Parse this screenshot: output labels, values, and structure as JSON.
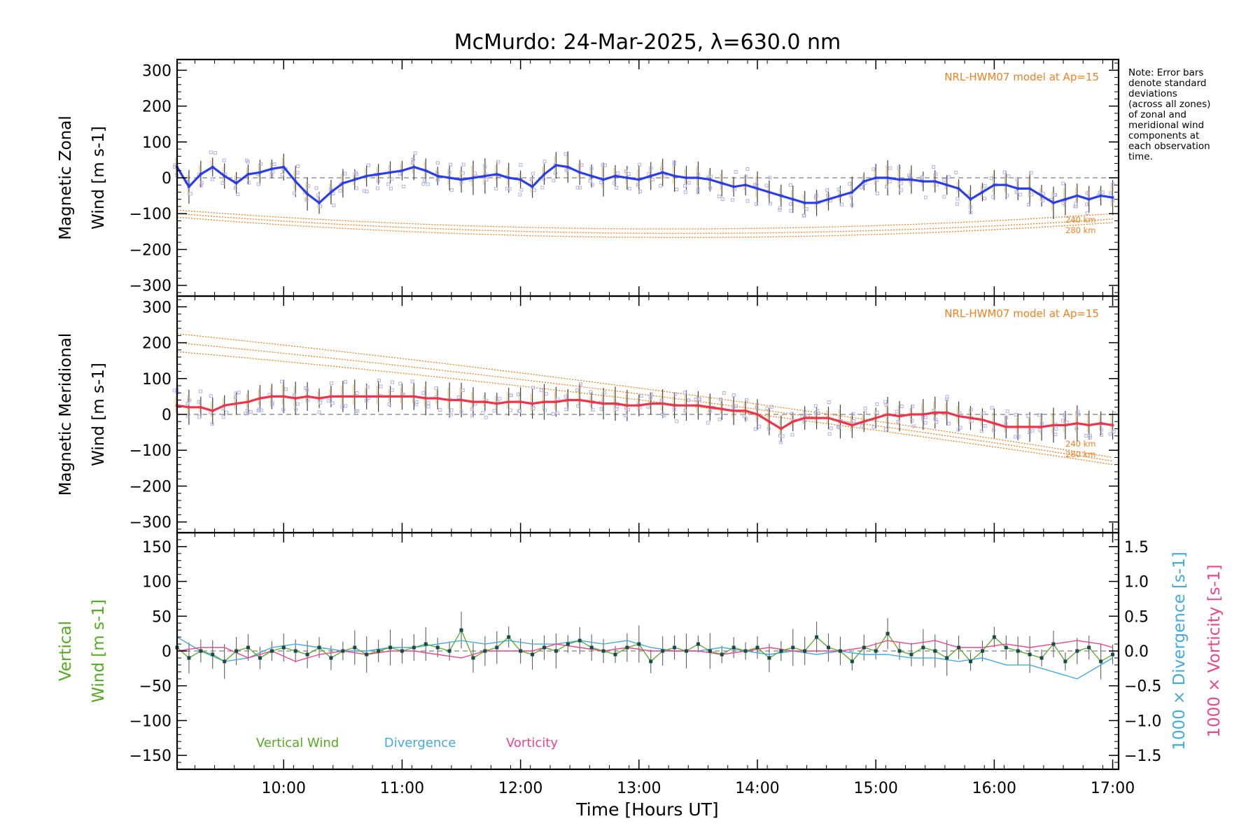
{
  "chart_data": {
    "type": "line",
    "title": "McMurdo: 24-Mar-2025, λ=630.0 nm",
    "note": [
      "Note: Error bars",
      "denote standard",
      "deviations",
      "(across all zones)",
      "of zonal and",
      "meridional wind",
      "components at",
      "each observation",
      "time."
    ],
    "x_axis": {
      "label": "Time [Hours UT]",
      "range": [
        9.1,
        17.05
      ],
      "ticks": [
        10,
        11,
        12,
        13,
        14,
        15,
        16,
        17
      ],
      "tick_labels": [
        "10:00",
        "11:00",
        "12:00",
        "13:00",
        "14:00",
        "15:00",
        "16:00",
        "17:00"
      ]
    },
    "panels": [
      {
        "id": "zonal",
        "ylabel_lines": [
          "Magnetic Zonal",
          "Wind [m s-1]"
        ],
        "ylim": [
          -330,
          330
        ],
        "yticks": [
          300,
          200,
          100,
          0,
          -100,
          -200,
          -300
        ],
        "ytick_labels": [
          "300",
          "200",
          "100",
          "0",
          "−100",
          "−200",
          "−300"
        ],
        "model_label": "NRL-HWM07 model at Ap=15",
        "model_alt_labels": [
          "240 km",
          "280 km"
        ],
        "series": [
          {
            "name": "Zonal wind",
            "color": "#2a3cf0",
            "x": [
              9.1,
              9.2,
              9.3,
              9.4,
              9.5,
              9.6,
              9.7,
              9.8,
              9.9,
              10.0,
              10.1,
              10.2,
              10.3,
              10.4,
              10.5,
              10.6,
              10.7,
              10.8,
              10.9,
              11.0,
              11.1,
              11.2,
              11.3,
              11.4,
              11.5,
              11.6,
              11.7,
              11.8,
              11.9,
              12.0,
              12.1,
              12.2,
              12.3,
              12.4,
              12.5,
              12.6,
              12.7,
              12.8,
              12.9,
              13.0,
              13.1,
              13.2,
              13.3,
              13.4,
              13.5,
              13.6,
              13.7,
              13.8,
              13.9,
              14.0,
              14.1,
              14.2,
              14.3,
              14.4,
              14.5,
              14.6,
              14.7,
              14.8,
              14.9,
              15.0,
              15.1,
              15.2,
              15.3,
              15.4,
              15.5,
              15.6,
              15.7,
              15.8,
              15.9,
              16.0,
              16.1,
              16.2,
              16.3,
              16.4,
              16.5,
              16.6,
              16.7,
              16.8,
              16.9,
              17.0
            ],
            "y": [
              30,
              -25,
              10,
              30,
              5,
              -15,
              10,
              15,
              25,
              30,
              -10,
              -45,
              -70,
              -40,
              -15,
              -5,
              5,
              10,
              15,
              20,
              30,
              20,
              5,
              0,
              -5,
              0,
              5,
              10,
              0,
              -5,
              -25,
              10,
              35,
              30,
              15,
              5,
              -5,
              5,
              0,
              -5,
              5,
              15,
              5,
              0,
              0,
              -5,
              -15,
              -25,
              -20,
              -30,
              -40,
              -50,
              -60,
              -70,
              -70,
              -60,
              -50,
              -40,
              -10,
              0,
              0,
              -5,
              -5,
              -10,
              -10,
              -20,
              -30,
              -60,
              -40,
              -20,
              -20,
              -30,
              -30,
              -50,
              -70,
              -60,
              -50,
              -60,
              -50,
              -55
            ]
          }
        ]
      },
      {
        "id": "meridional",
        "ylabel_lines": [
          "Magnetic Meridional",
          "Wind [m s-1]"
        ],
        "ylim": [
          -330,
          330
        ],
        "yticks": [
          300,
          200,
          100,
          0,
          -100,
          -200,
          -300
        ],
        "ytick_labels": [
          "300",
          "200",
          "100",
          "0",
          "−100",
          "−200",
          "−300"
        ],
        "model_label": "NRL-HWM07 model at Ap=15",
        "model_alt_labels": [
          "240 km",
          "280 km"
        ],
        "series": [
          {
            "name": "Meridional wind",
            "color": "#f0324a",
            "x": [
              9.1,
              9.2,
              9.3,
              9.4,
              9.5,
              9.6,
              9.7,
              9.8,
              9.9,
              10.0,
              10.1,
              10.2,
              10.3,
              10.4,
              10.5,
              10.6,
              10.7,
              10.8,
              10.9,
              11.0,
              11.1,
              11.2,
              11.3,
              11.4,
              11.5,
              11.6,
              11.7,
              11.8,
              11.9,
              12.0,
              12.1,
              12.2,
              12.3,
              12.4,
              12.5,
              12.6,
              12.7,
              12.8,
              12.9,
              13.0,
              13.1,
              13.2,
              13.3,
              13.4,
              13.5,
              13.6,
              13.7,
              13.8,
              13.9,
              14.0,
              14.1,
              14.2,
              14.3,
              14.4,
              14.5,
              14.6,
              14.7,
              14.8,
              14.9,
              15.0,
              15.1,
              15.2,
              15.3,
              15.4,
              15.5,
              15.6,
              15.7,
              15.8,
              15.9,
              16.0,
              16.1,
              16.2,
              16.3,
              16.4,
              16.5,
              16.6,
              16.7,
              16.8,
              16.9,
              17.0
            ],
            "y": [
              25,
              20,
              20,
              10,
              25,
              30,
              35,
              45,
              50,
              50,
              45,
              50,
              45,
              50,
              50,
              50,
              50,
              50,
              50,
              50,
              50,
              45,
              45,
              40,
              40,
              35,
              35,
              30,
              35,
              35,
              30,
              35,
              35,
              40,
              40,
              35,
              30,
              30,
              25,
              25,
              30,
              30,
              25,
              25,
              25,
              20,
              15,
              10,
              10,
              0,
              -20,
              -40,
              -20,
              -10,
              -10,
              -10,
              -20,
              -30,
              -20,
              -10,
              0,
              -5,
              0,
              0,
              5,
              5,
              -5,
              -10,
              -15,
              -25,
              -35,
              -35,
              -35,
              -35,
              -30,
              -30,
              -25,
              -30,
              -25,
              -30
            ]
          }
        ]
      },
      {
        "id": "vertical",
        "ylabel_lines": [
          "Vertical",
          "Wind [m s-1]"
        ],
        "ylim": [
          -170,
          170
        ],
        "yticks": [
          150,
          100,
          50,
          0,
          -50,
          -100,
          -150
        ],
        "ytick_labels": [
          "150",
          "100",
          "50",
          "0",
          "−50",
          "−100",
          "−150"
        ],
        "right_axis": {
          "ylim": [
            -1.7,
            1.7
          ],
          "yticks": [
            1.5,
            1.0,
            0.5,
            0.0,
            -0.5,
            -1.0,
            -1.5
          ],
          "ytick_labels": [
            "1.5",
            "1.0",
            "0.5",
            "0.0",
            "−0.5",
            "−1.0",
            "−1.5"
          ],
          "label_divergence": "1000 × Divergence [s-1]",
          "label_vorticity": "1000 × Vorticity [s-1]"
        },
        "legend": [
          "Vertical Wind",
          "Divergence",
          "Vorticity"
        ],
        "series": [
          {
            "name": "Vertical Wind",
            "color": "#55aa22",
            "x": [
              9.1,
              9.2,
              9.3,
              9.4,
              9.5,
              9.6,
              9.7,
              9.8,
              9.9,
              10.0,
              10.1,
              10.2,
              10.3,
              10.4,
              10.5,
              10.6,
              10.7,
              10.8,
              10.9,
              11.0,
              11.1,
              11.2,
              11.3,
              11.4,
              11.5,
              11.6,
              11.7,
              11.8,
              11.9,
              12.0,
              12.1,
              12.2,
              12.3,
              12.4,
              12.5,
              12.6,
              12.7,
              12.8,
              12.9,
              13.0,
              13.1,
              13.2,
              13.3,
              13.4,
              13.5,
              13.6,
              13.7,
              13.8,
              13.9,
              14.0,
              14.1,
              14.2,
              14.3,
              14.4,
              14.5,
              14.6,
              14.7,
              14.8,
              14.9,
              15.0,
              15.1,
              15.2,
              15.3,
              15.4,
              15.5,
              15.6,
              15.7,
              15.8,
              15.9,
              16.0,
              16.1,
              16.2,
              16.3,
              16.4,
              16.5,
              16.6,
              16.7,
              16.8,
              16.9,
              17.0
            ],
            "y": [
              5,
              -10,
              0,
              -5,
              -15,
              0,
              5,
              -10,
              0,
              5,
              0,
              -5,
              5,
              -10,
              0,
              5,
              -5,
              0,
              5,
              0,
              5,
              10,
              5,
              0,
              30,
              -10,
              0,
              5,
              20,
              0,
              -5,
              5,
              0,
              10,
              15,
              5,
              0,
              -5,
              5,
              10,
              -15,
              0,
              5,
              0,
              10,
              0,
              -5,
              5,
              0,
              5,
              -10,
              0,
              5,
              0,
              20,
              5,
              0,
              -15,
              5,
              0,
              25,
              0,
              -5,
              5,
              0,
              -10,
              5,
              -15,
              0,
              20,
              5,
              0,
              -5,
              -10,
              10,
              -15,
              0,
              5,
              -15,
              -5
            ]
          },
          {
            "name": "Divergence",
            "color": "#44aadd",
            "x": [
              9.1,
              9.3,
              9.5,
              9.7,
              9.9,
              10.1,
              10.3,
              10.5,
              10.7,
              10.9,
              11.1,
              11.3,
              11.5,
              11.7,
              11.9,
              12.1,
              12.3,
              12.5,
              12.7,
              12.9,
              13.1,
              13.3,
              13.5,
              13.7,
              13.9,
              14.1,
              14.3,
              14.5,
              14.7,
              14.9,
              15.1,
              15.3,
              15.5,
              15.7,
              15.9,
              16.1,
              16.3,
              16.5,
              16.7,
              16.9,
              17.0
            ],
            "y": [
              0.2,
              0.0,
              -0.15,
              -0.1,
              0.05,
              0.1,
              0.05,
              0.0,
              0.0,
              0.05,
              0.05,
              0.1,
              0.15,
              0.1,
              0.15,
              0.1,
              0.1,
              0.15,
              0.1,
              0.15,
              0.05,
              0.0,
              0.0,
              0.05,
              0.0,
              -0.05,
              0.0,
              -0.05,
              0.0,
              -0.05,
              -0.05,
              -0.1,
              -0.1,
              -0.15,
              -0.1,
              -0.2,
              -0.2,
              -0.3,
              -0.4,
              -0.2,
              -0.1
            ]
          },
          {
            "name": "Vorticity",
            "color": "#ee4488",
            "x": [
              9.1,
              9.3,
              9.5,
              9.7,
              9.9,
              10.1,
              10.3,
              10.5,
              10.7,
              10.9,
              11.1,
              11.3,
              11.5,
              11.7,
              11.9,
              12.1,
              12.3,
              12.5,
              12.7,
              12.9,
              13.1,
              13.3,
              13.5,
              13.7,
              13.9,
              14.1,
              14.3,
              14.5,
              14.7,
              14.9,
              15.1,
              15.3,
              15.5,
              15.7,
              15.9,
              16.1,
              16.3,
              16.5,
              16.7,
              16.9,
              17.0
            ],
            "y": [
              0.0,
              0.05,
              0.05,
              -0.1,
              0.0,
              -0.15,
              -0.05,
              0.0,
              -0.05,
              0.0,
              0.0,
              -0.05,
              -0.1,
              0.0,
              0.0,
              0.0,
              0.1,
              0.05,
              0.0,
              0.05,
              0.0,
              0.0,
              0.0,
              -0.05,
              0.0,
              0.05,
              0.0,
              0.0,
              0.0,
              0.05,
              0.15,
              0.1,
              0.15,
              0.05,
              0.05,
              0.1,
              0.05,
              0.1,
              0.15,
              0.1,
              0.05
            ]
          }
        ]
      }
    ],
    "colors": {
      "model": "#f08020",
      "zonal": "#2a3cf0",
      "meridional": "#f0324a",
      "vertical": "#55aa22",
      "divergence": "#44aadd",
      "vorticity": "#ee4488",
      "scatter": "#b0b0e8",
      "errorbar": "#404040"
    }
  }
}
